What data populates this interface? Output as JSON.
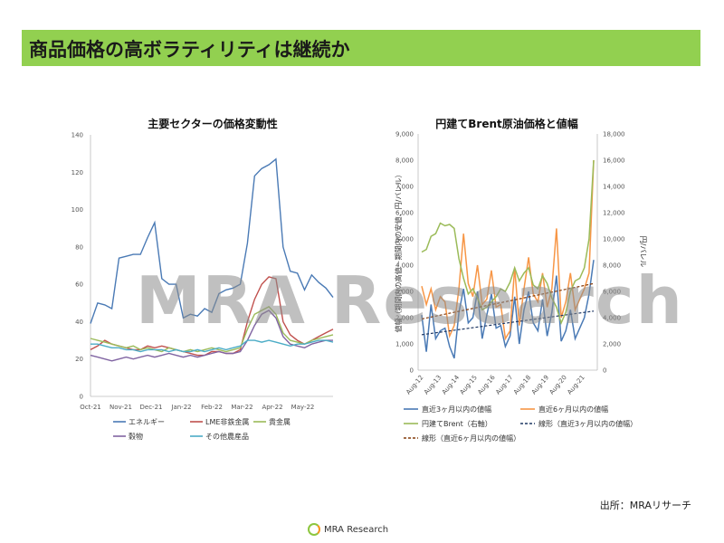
{
  "slide": {
    "title": "商品価格の高ボラティリティは継続か",
    "watermark": "MRA Research",
    "source": "出所：MRAリサーチ",
    "footer_brand": "MRA Research",
    "colors": {
      "accent": "#92d050"
    }
  },
  "chart_data": [
    {
      "type": "line",
      "title": "主要セクターの価格変動性",
      "x_ticks": [
        "Oct-21",
        "Nov-21",
        "Dec-21",
        "Jan-22",
        "Feb-22",
        "Mar-22",
        "Apr-22",
        "May-22"
      ],
      "y_ticks": [
        0,
        20,
        40,
        60,
        80,
        100,
        120,
        140
      ],
      "ylim": [
        0,
        140
      ],
      "legend": "bottom",
      "series": [
        {
          "name": "エネルギー",
          "color": "#4a7ab5",
          "values": [
            39,
            50,
            49,
            47,
            74,
            75,
            76,
            76,
            85,
            93,
            63,
            60,
            60,
            42,
            44,
            43,
            47,
            45,
            55,
            57,
            58,
            60,
            82,
            118,
            122,
            124,
            127,
            80,
            67,
            66,
            57,
            65,
            61,
            58,
            53
          ]
        },
        {
          "name": "LME非鉄金属",
          "color": "#c0504d",
          "values": [
            25,
            27,
            30,
            28,
            27,
            26,
            25,
            25,
            27,
            26,
            27,
            26,
            25,
            24,
            23,
            22,
            22,
            24,
            24,
            23,
            23,
            25,
            40,
            52,
            60,
            64,
            63,
            40,
            33,
            30,
            28,
            30,
            32,
            34,
            36
          ]
        },
        {
          "name": "貴金属",
          "color": "#9bbb59",
          "values": [
            31,
            30,
            29,
            28,
            27,
            26,
            27,
            25,
            26,
            25,
            24,
            26,
            25,
            24,
            25,
            24,
            25,
            26,
            25,
            24,
            25,
            26,
            36,
            44,
            46,
            48,
            44,
            34,
            30,
            29,
            28,
            30,
            31,
            32,
            33
          ]
        },
        {
          "name": "穀物",
          "color": "#8064a2",
          "values": [
            22,
            21,
            20,
            19,
            20,
            21,
            20,
            21,
            22,
            21,
            22,
            23,
            22,
            21,
            22,
            21,
            22,
            23,
            24,
            23,
            23,
            24,
            30,
            38,
            44,
            46,
            42,
            32,
            28,
            27,
            26,
            28,
            29,
            30,
            30
          ]
        },
        {
          "name": "その他農産品",
          "color": "#4bacc6",
          "values": [
            28,
            28,
            27,
            26,
            26,
            25,
            25,
            24,
            25,
            25,
            25,
            24,
            25,
            24,
            24,
            25,
            24,
            25,
            26,
            25,
            26,
            27,
            30,
            30,
            29,
            30,
            29,
            28,
            27,
            28,
            28,
            29,
            30,
            30,
            29
          ]
        }
      ]
    },
    {
      "type": "line",
      "title": "円建てBrent原油価格と値幅",
      "y_ticks_left": [
        "0",
        "1,000",
        "2,000",
        "3,000",
        "4,000",
        "5,000",
        "6,000",
        "7,000",
        "8,000",
        "9,000"
      ],
      "y_ticks_right": [
        "0",
        "2,000",
        "4,000",
        "6,000",
        "8,000",
        "10,000",
        "12,000",
        "14,000",
        "16,000",
        "18,000"
      ],
      "ylim_left": [
        0,
        9000
      ],
      "ylim_right": [
        0,
        18000
      ],
      "ylabel_left": "値幅（期間内の高値－期間内の安値、円/バレル）",
      "ylabel_right": "円/バレル",
      "x_ticks": [
        "Aug-12",
        "Aug-13",
        "Aug-14",
        "Aug-15",
        "Aug-16",
        "Aug-17",
        "Aug-18",
        "Aug-19",
        "Aug-20",
        "Aug-21"
      ],
      "legend": "bottom",
      "series": [
        {
          "name": "直近3ヶ月以内の値幅",
          "color": "#4a7ab5",
          "axis": "left",
          "dash": "",
          "values": [
            2100,
            700,
            2500,
            1200,
            1500,
            1600,
            900,
            450,
            2200,
            3100,
            1800,
            2000,
            3000,
            1200,
            2100,
            2900,
            1600,
            1700,
            900,
            1300,
            2800,
            1000,
            2300,
            3000,
            1800,
            1500,
            2700,
            1300,
            2200,
            3600,
            1100,
            1500,
            2300,
            1200,
            1600,
            2000,
            2900,
            4200
          ]
        },
        {
          "name": "直近6ヶ月以内の値幅",
          "color": "#f79646",
          "axis": "left",
          "dash": "",
          "values": [
            3200,
            2500,
            3100,
            2300,
            2800,
            2600,
            1300,
            1700,
            3100,
            5200,
            3300,
            2800,
            4000,
            2500,
            2700,
            3800,
            2400,
            2500,
            1200,
            1500,
            3900,
            1700,
            3100,
            4300,
            2900,
            2600,
            3700,
            2400,
            3100,
            5400,
            2000,
            2600,
            3700,
            2300,
            2700,
            3100,
            3700,
            8000
          ]
        },
        {
          "name": "円建てBrent（右軸）",
          "color": "#9bbb59",
          "axis": "right",
          "dash": "",
          "values": [
            9000,
            9200,
            10200,
            10400,
            11200,
            11000,
            11100,
            10800,
            8500,
            7000,
            5800,
            6200,
            5500,
            4600,
            4800,
            5200,
            5600,
            6200,
            6000,
            6700,
            7800,
            6800,
            7400,
            7800,
            6500,
            6200,
            7200,
            6600,
            5500,
            4800,
            3600,
            4400,
            6000,
            6800,
            7000,
            7800,
            10000,
            16000
          ]
        },
        {
          "name": "線形（直近3ヶ月以内の値幅）",
          "color": "#1f3864",
          "axis": "left",
          "dash": "3,2",
          "trend": [
            1350,
            2250
          ]
        },
        {
          "name": "線形（直近6ヶ月以内の値幅）",
          "color": "#843c0c",
          "axis": "left",
          "dash": "3,2",
          "trend": [
            1950,
            3300
          ]
        }
      ]
    }
  ]
}
